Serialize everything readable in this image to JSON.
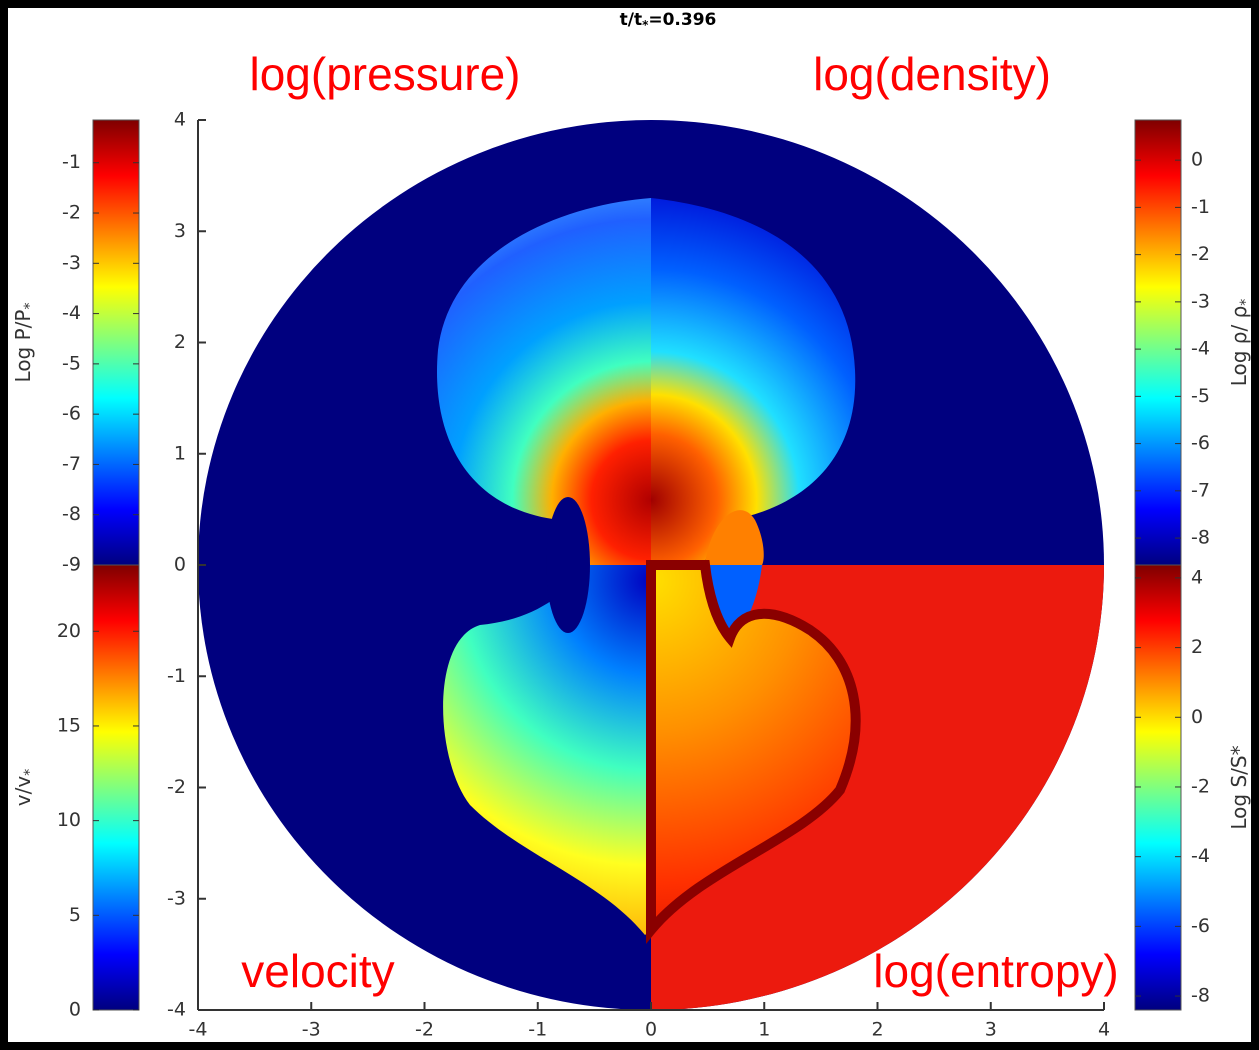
{
  "chart_data": {
    "type": "image",
    "title": {
      "text": "t/t",
      "sub": "*",
      "rest": "=0.396"
    },
    "xlim": [
      -4,
      4
    ],
    "ylim": [
      -4,
      4
    ],
    "xticks": [
      -4,
      -3,
      -2,
      -1,
      0,
      1,
      2,
      3,
      4
    ],
    "yticks": [
      -4,
      -3,
      -2,
      -1,
      0,
      1,
      2,
      3,
      4
    ],
    "quadrant_labels": [
      "log(pressure)",
      "log(density)",
      "velocity",
      "log(entropy)"
    ],
    "colorbars": [
      {
        "label": {
          "text": "Log P/P",
          "sub": "*"
        },
        "lim": [
          -9,
          -0.15
        ],
        "ticks": [
          -1,
          -2,
          -3,
          -4,
          -5,
          -6,
          -7,
          -8,
          -9
        ],
        "side": "left",
        "position": "top"
      },
      {
        "label": {
          "text": "v/v",
          "sub": "*"
        },
        "lim": [
          0,
          23.5
        ],
        "ticks": [
          20,
          15,
          10,
          5,
          0
        ],
        "side": "left",
        "position": "bottom"
      },
      {
        "label": {
          "text": "Log ρ/ ρ",
          "sub": "*"
        },
        "lim": [
          -8.57,
          0.85
        ],
        "ticks": [
          0,
          -1,
          -2,
          -3,
          -4,
          -5,
          -6,
          -7,
          -8
        ],
        "side": "right",
        "position": "top"
      },
      {
        "label": {
          "text": "Log S/S*"
        },
        "lim": [
          -8.4,
          4.37
        ],
        "ticks": [
          4,
          2,
          0,
          -2,
          -4,
          -6,
          -8
        ],
        "side": "right",
        "position": "bottom"
      }
    ]
  }
}
